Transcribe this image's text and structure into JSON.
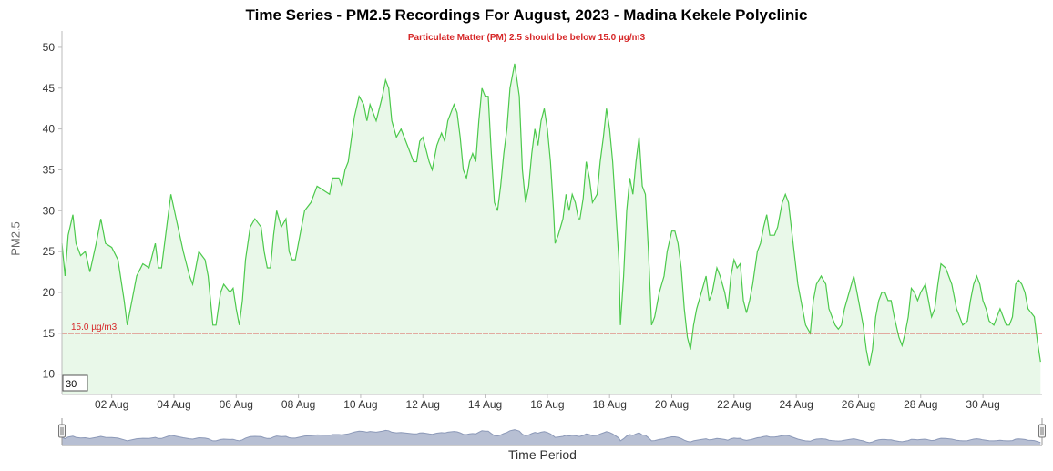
{
  "chart_data": {
    "type": "area",
    "title": "Time Series - PM2.5 Recordings For August, 2023 - Madina Kekele Polyclinic",
    "subtitle": "Particulate Matter (PM) 2.5 should be below 15.0 µg/m3",
    "xlabel": "Time Period",
    "ylabel": "PM2.5",
    "ylim": [
      7.5,
      52
    ],
    "yticks": [
      10,
      15,
      20,
      25,
      30,
      35,
      40,
      45,
      50
    ],
    "xlim": [
      0.4,
      31.9
    ],
    "xticks": [
      {
        "x": 2,
        "label": "02 Aug"
      },
      {
        "x": 4,
        "label": "04 Aug"
      },
      {
        "x": 6,
        "label": "06 Aug"
      },
      {
        "x": 8,
        "label": "08 Aug"
      },
      {
        "x": 10,
        "label": "10 Aug"
      },
      {
        "x": 12,
        "label": "12 Aug"
      },
      {
        "x": 14,
        "label": "14 Aug"
      },
      {
        "x": 16,
        "label": "16 Aug"
      },
      {
        "x": 18,
        "label": "18 Aug"
      },
      {
        "x": 20,
        "label": "20 Aug"
      },
      {
        "x": 22,
        "label": "22 Aug"
      },
      {
        "x": 24,
        "label": "24 Aug"
      },
      {
        "x": 26,
        "label": "26 Aug"
      },
      {
        "x": 28,
        "label": "28 Aug"
      },
      {
        "x": 30,
        "label": "30 Aug"
      }
    ],
    "threshold": {
      "value": 15.0,
      "label": "15.0 µg/m3"
    },
    "legend_badge": "30",
    "grid": false,
    "series": [
      {
        "color": "#4cc94c",
        "fill": "#e9f8e9",
        "points": [
          [
            0.4,
            26
          ],
          [
            0.5,
            22
          ],
          [
            0.6,
            27
          ],
          [
            0.75,
            29.5
          ],
          [
            0.85,
            26
          ],
          [
            1.0,
            24.5
          ],
          [
            1.15,
            25
          ],
          [
            1.3,
            22.5
          ],
          [
            1.5,
            26
          ],
          [
            1.65,
            29
          ],
          [
            1.8,
            26
          ],
          [
            2.0,
            25.5
          ],
          [
            2.2,
            24
          ],
          [
            2.4,
            19
          ],
          [
            2.5,
            16
          ],
          [
            2.7,
            20
          ],
          [
            2.8,
            22
          ],
          [
            3.0,
            23.5
          ],
          [
            3.2,
            23
          ],
          [
            3.4,
            26
          ],
          [
            3.5,
            23
          ],
          [
            3.6,
            23
          ],
          [
            3.8,
            29
          ],
          [
            3.9,
            32
          ],
          [
            4.1,
            28.5
          ],
          [
            4.3,
            25
          ],
          [
            4.5,
            22
          ],
          [
            4.6,
            21
          ],
          [
            4.8,
            25
          ],
          [
            5.0,
            24
          ],
          [
            5.1,
            22
          ],
          [
            5.25,
            16
          ],
          [
            5.35,
            16
          ],
          [
            5.5,
            20
          ],
          [
            5.6,
            21
          ],
          [
            5.8,
            20
          ],
          [
            5.9,
            20.5
          ],
          [
            6.0,
            18
          ],
          [
            6.1,
            16
          ],
          [
            6.2,
            19
          ],
          [
            6.3,
            24
          ],
          [
            6.45,
            28
          ],
          [
            6.6,
            29
          ],
          [
            6.8,
            28
          ],
          [
            6.9,
            25
          ],
          [
            7.0,
            23
          ],
          [
            7.1,
            23
          ],
          [
            7.2,
            27
          ],
          [
            7.3,
            30
          ],
          [
            7.45,
            28
          ],
          [
            7.6,
            29
          ],
          [
            7.7,
            25
          ],
          [
            7.8,
            24
          ],
          [
            7.9,
            24
          ],
          [
            8.0,
            26
          ],
          [
            8.2,
            30
          ],
          [
            8.4,
            31
          ],
          [
            8.6,
            33
          ],
          [
            8.8,
            32.5
          ],
          [
            9.0,
            32
          ],
          [
            9.1,
            34
          ],
          [
            9.3,
            34
          ],
          [
            9.4,
            33
          ],
          [
            9.5,
            35
          ],
          [
            9.6,
            36
          ],
          [
            9.8,
            41.5
          ],
          [
            9.95,
            44
          ],
          [
            10.1,
            43
          ],
          [
            10.2,
            41
          ],
          [
            10.3,
            43
          ],
          [
            10.4,
            42
          ],
          [
            10.5,
            41
          ],
          [
            10.7,
            44
          ],
          [
            10.8,
            46
          ],
          [
            10.9,
            45
          ],
          [
            11.0,
            41
          ],
          [
            11.15,
            39
          ],
          [
            11.3,
            40
          ],
          [
            11.5,
            38
          ],
          [
            11.6,
            37
          ],
          [
            11.7,
            36
          ],
          [
            11.8,
            36
          ],
          [
            11.9,
            38.5
          ],
          [
            12.0,
            39
          ],
          [
            12.2,
            36
          ],
          [
            12.3,
            35
          ],
          [
            12.45,
            38
          ],
          [
            12.6,
            39.5
          ],
          [
            12.7,
            38.5
          ],
          [
            12.8,
            41
          ],
          [
            12.9,
            42
          ],
          [
            13.0,
            43
          ],
          [
            13.1,
            42
          ],
          [
            13.2,
            39
          ],
          [
            13.3,
            35
          ],
          [
            13.4,
            34
          ],
          [
            13.5,
            36
          ],
          [
            13.6,
            37
          ],
          [
            13.7,
            36
          ],
          [
            13.8,
            41
          ],
          [
            13.9,
            45
          ],
          [
            14.0,
            44
          ],
          [
            14.1,
            44
          ],
          [
            14.2,
            37
          ],
          [
            14.3,
            31
          ],
          [
            14.4,
            30
          ],
          [
            14.5,
            33
          ],
          [
            14.6,
            37
          ],
          [
            14.7,
            40
          ],
          [
            14.8,
            45
          ],
          [
            14.95,
            48
          ],
          [
            15.1,
            44
          ],
          [
            15.2,
            35
          ],
          [
            15.3,
            31
          ],
          [
            15.4,
            33
          ],
          [
            15.5,
            37
          ],
          [
            15.6,
            40
          ],
          [
            15.7,
            38
          ],
          [
            15.8,
            41
          ],
          [
            15.9,
            42.5
          ],
          [
            16.0,
            40
          ],
          [
            16.1,
            36
          ],
          [
            16.2,
            30
          ],
          [
            16.25,
            26
          ],
          [
            16.35,
            27
          ],
          [
            16.5,
            29
          ],
          [
            16.6,
            32
          ],
          [
            16.7,
            30
          ],
          [
            16.8,
            32
          ],
          [
            16.9,
            31
          ],
          [
            17.0,
            29
          ],
          [
            17.05,
            29
          ],
          [
            17.15,
            31.5
          ],
          [
            17.25,
            36
          ],
          [
            17.35,
            34
          ],
          [
            17.45,
            31
          ],
          [
            17.6,
            32
          ],
          [
            17.7,
            36
          ],
          [
            17.8,
            39
          ],
          [
            17.9,
            42.5
          ],
          [
            18.0,
            40
          ],
          [
            18.1,
            36
          ],
          [
            18.2,
            30
          ],
          [
            18.3,
            24
          ],
          [
            18.35,
            16
          ],
          [
            18.45,
            22
          ],
          [
            18.55,
            30
          ],
          [
            18.65,
            34
          ],
          [
            18.75,
            32
          ],
          [
            18.85,
            36
          ],
          [
            18.95,
            39
          ],
          [
            19.05,
            33
          ],
          [
            19.15,
            32
          ],
          [
            19.25,
            25
          ],
          [
            19.35,
            16
          ],
          [
            19.45,
            17
          ],
          [
            19.6,
            20
          ],
          [
            19.75,
            22
          ],
          [
            19.85,
            25
          ],
          [
            20.0,
            27.5
          ],
          [
            20.1,
            27.5
          ],
          [
            20.2,
            26
          ],
          [
            20.3,
            23
          ],
          [
            20.4,
            18
          ],
          [
            20.5,
            14.5
          ],
          [
            20.6,
            13
          ],
          [
            20.7,
            16
          ],
          [
            20.8,
            18
          ],
          [
            20.95,
            20
          ],
          [
            21.1,
            22
          ],
          [
            21.2,
            19
          ],
          [
            21.3,
            20
          ],
          [
            21.45,
            23
          ],
          [
            21.55,
            22
          ],
          [
            21.7,
            20
          ],
          [
            21.8,
            18
          ],
          [
            21.9,
            22
          ],
          [
            22.0,
            24
          ],
          [
            22.1,
            23
          ],
          [
            22.2,
            23.5
          ],
          [
            22.3,
            19
          ],
          [
            22.4,
            17.5
          ],
          [
            22.5,
            19
          ],
          [
            22.6,
            21
          ],
          [
            22.75,
            25
          ],
          [
            22.85,
            26
          ],
          [
            22.95,
            28
          ],
          [
            23.05,
            29.5
          ],
          [
            23.15,
            27
          ],
          [
            23.3,
            27
          ],
          [
            23.4,
            28
          ],
          [
            23.55,
            31
          ],
          [
            23.65,
            32
          ],
          [
            23.75,
            31
          ],
          [
            23.9,
            26
          ],
          [
            24.05,
            21
          ],
          [
            24.2,
            18
          ],
          [
            24.3,
            16
          ],
          [
            24.45,
            15
          ],
          [
            24.55,
            19
          ],
          [
            24.65,
            21
          ],
          [
            24.8,
            22
          ],
          [
            24.95,
            21
          ],
          [
            25.05,
            18
          ],
          [
            25.15,
            17
          ],
          [
            25.25,
            16
          ],
          [
            25.35,
            15.5
          ],
          [
            25.45,
            16
          ],
          [
            25.55,
            18
          ],
          [
            25.7,
            20
          ],
          [
            25.85,
            22
          ],
          [
            25.95,
            20
          ],
          [
            26.05,
            18
          ],
          [
            26.15,
            16
          ],
          [
            26.25,
            13
          ],
          [
            26.35,
            11
          ],
          [
            26.45,
            13
          ],
          [
            26.55,
            17
          ],
          [
            26.65,
            19
          ],
          [
            26.75,
            20
          ],
          [
            26.85,
            20
          ],
          [
            26.95,
            19
          ],
          [
            27.05,
            19
          ],
          [
            27.15,
            17
          ],
          [
            27.3,
            14.5
          ],
          [
            27.4,
            13.5
          ],
          [
            27.5,
            15
          ],
          [
            27.6,
            17
          ],
          [
            27.7,
            20.5
          ],
          [
            27.8,
            20
          ],
          [
            27.9,
            19
          ],
          [
            28.0,
            20
          ],
          [
            28.15,
            21
          ],
          [
            28.25,
            19
          ],
          [
            28.35,
            17
          ],
          [
            28.45,
            18
          ],
          [
            28.55,
            21
          ],
          [
            28.65,
            23.5
          ],
          [
            28.8,
            23
          ],
          [
            28.9,
            22
          ],
          [
            29.0,
            21
          ],
          [
            29.1,
            19
          ],
          [
            29.15,
            18
          ],
          [
            29.25,
            17
          ],
          [
            29.35,
            16
          ],
          [
            29.5,
            16.5
          ],
          [
            29.6,
            19
          ],
          [
            29.7,
            21
          ],
          [
            29.8,
            22
          ],
          [
            29.9,
            21
          ],
          [
            30.0,
            19
          ],
          [
            30.1,
            18
          ],
          [
            30.2,
            16.5
          ],
          [
            30.35,
            16
          ],
          [
            30.45,
            17
          ],
          [
            30.55,
            18
          ],
          [
            30.65,
            17
          ],
          [
            30.75,
            16
          ],
          [
            30.85,
            16
          ],
          [
            30.95,
            17
          ],
          [
            31.05,
            21
          ],
          [
            31.15,
            21.5
          ],
          [
            31.25,
            21
          ],
          [
            31.35,
            20
          ],
          [
            31.45,
            18
          ],
          [
            31.55,
            17.5
          ],
          [
            31.65,
            17
          ],
          [
            31.75,
            14
          ],
          [
            31.85,
            11.5
          ]
        ]
      }
    ],
    "navigator": {
      "line_color": "#8c99b8",
      "fill_color": "#b7bfd3"
    }
  }
}
